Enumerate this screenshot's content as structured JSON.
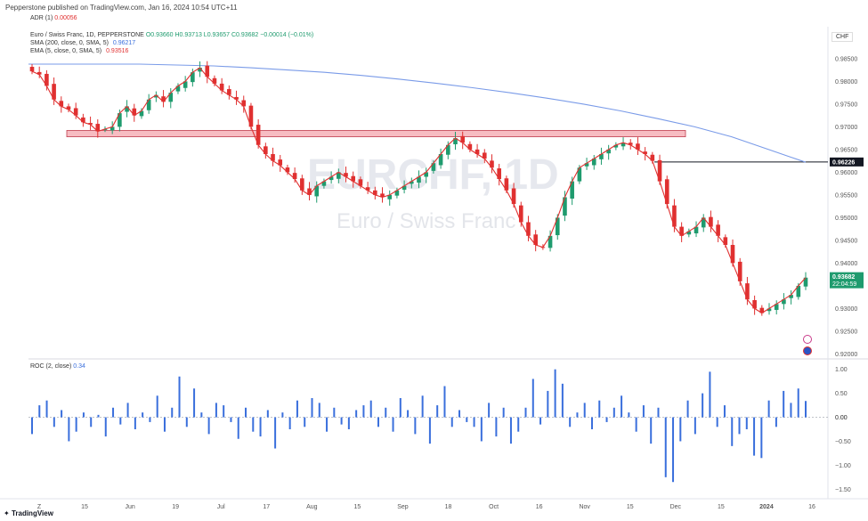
{
  "header": {
    "publisher": "Pepperstone published on TradingView.com, Jan 16, 2024 10:54 UTC+11"
  },
  "adr": {
    "label": "ADR (1)",
    "value": "0.00056"
  },
  "legend": {
    "symbol": "Euro / Swiss Franc, 1D, PEPPERSTONE",
    "ohlc": "O0.93660 H0.93713 L0.93657 C0.93682 −0.00014 (−0.01%)",
    "sma_label": "SMA (200, close, 0, SMA, 5)",
    "sma_value": "0.96217",
    "ema_label": "EMA (5, close, 0, SMA, 5)",
    "ema_value": "0.93516"
  },
  "currency": "CHF",
  "watermark": {
    "ticker": "EURCHF, 1D",
    "name": "Euro / Swiss Franc"
  },
  "roc": {
    "label": "ROC (2, close)",
    "value": "0.34"
  },
  "footer": {
    "brand": "TradingView"
  },
  "colors": {
    "up": "#1f9b6e",
    "down": "#e03030",
    "sma": "#7a9be8",
    "ema": "#e03030",
    "roc": "#3a6fdc",
    "zone": "#f4a6ad"
  },
  "chart_data": [
    {
      "type": "candlestick",
      "title": "Euro / Swiss Franc, 1D, PEPPERSTONE",
      "y_ticks": [
        "0.98500",
        "0.98000",
        "0.97500",
        "0.97000",
        "0.96500",
        "0.96000",
        "0.95500",
        "0.95000",
        "0.94500",
        "0.94000",
        "0.93500",
        "0.93000",
        "0.92500",
        "0.92000"
      ],
      "ylim": [
        0.9195,
        0.9885
      ],
      "x_ticks": [
        "Z",
        "15",
        "Jun",
        "19",
        "Jul",
        "17",
        "Aug",
        "15",
        "Sep",
        "18",
        "Oct",
        "16",
        "Nov",
        "15",
        "Dec",
        "15",
        "2024",
        "16"
      ],
      "horizontal_line": {
        "value": 0.96226,
        "label": "0.96226"
      },
      "last_price": {
        "value": 0.93682,
        "label": "0.93682",
        "countdown": "22:04:59"
      },
      "resistance_zone": [
        0.9678,
        0.9692
      ],
      "close_series_approx": [
        0.9822,
        0.9815,
        0.979,
        0.976,
        0.9745,
        0.9738,
        0.9725,
        0.971,
        0.9705,
        0.969,
        0.9695,
        0.97,
        0.973,
        0.9745,
        0.9725,
        0.9735,
        0.976,
        0.977,
        0.9755,
        0.9775,
        0.979,
        0.98,
        0.982,
        0.983,
        0.981,
        0.9795,
        0.978,
        0.977,
        0.976,
        0.9745,
        0.97,
        0.966,
        0.964,
        0.9625,
        0.9615,
        0.96,
        0.9585,
        0.956,
        0.955,
        0.957,
        0.958,
        0.959,
        0.96,
        0.959,
        0.958,
        0.957,
        0.956,
        0.955,
        0.9545,
        0.955,
        0.956,
        0.957,
        0.958,
        0.959,
        0.96,
        0.962,
        0.964,
        0.966,
        0.9675,
        0.9665,
        0.965,
        0.964,
        0.963,
        0.961,
        0.9585,
        0.956,
        0.953,
        0.949,
        0.946,
        0.944,
        0.9435,
        0.946,
        0.95,
        0.9545,
        0.958,
        0.961,
        0.962,
        0.963,
        0.964,
        0.965,
        0.966,
        0.9665,
        0.966,
        0.965,
        0.964,
        0.9625,
        0.958,
        0.953,
        0.948,
        0.946,
        0.947,
        0.948,
        0.95,
        0.948,
        0.946,
        0.944,
        0.94,
        0.936,
        0.932,
        0.93,
        0.929,
        0.93,
        0.931,
        0.932,
        0.933,
        0.935,
        0.9368
      ],
      "sma200_approx": [
        0.9838,
        0.9838,
        0.9838,
        0.9838,
        0.9836,
        0.9834,
        0.983,
        0.9825,
        0.982,
        0.9813,
        0.9805,
        0.9796,
        0.9786,
        0.9775,
        0.9763,
        0.975,
        0.9735,
        0.9718,
        0.97,
        0.9678,
        0.965,
        0.9622
      ]
    },
    {
      "type": "bar",
      "title": "ROC (2, close)",
      "y_ticks": [
        "1.00",
        "0.50",
        "0.00",
        "−0.50",
        "−1.00",
        "−1.50"
      ],
      "ylim": [
        -1.55,
        1.05
      ],
      "zero_label": "0.00",
      "values_approx": [
        -0.35,
        0.25,
        0.35,
        -0.2,
        0.15,
        -0.5,
        -0.3,
        0.1,
        -0.2,
        0.05,
        -0.4,
        0.2,
        -0.15,
        0.3,
        -0.25,
        0.1,
        -0.1,
        0.45,
        -0.3,
        0.2,
        0.85,
        -0.2,
        0.6,
        0.1,
        -0.35,
        0.3,
        0.25,
        -0.1,
        -0.45,
        0.2,
        -0.3,
        -0.4,
        0.15,
        -0.65,
        0.1,
        -0.25,
        0.35,
        -0.2,
        0.4,
        0.3,
        -0.3,
        0.2,
        -0.15,
        -0.25,
        0.15,
        0.25,
        0.35,
        -0.2,
        0.2,
        -0.3,
        0.4,
        0.15,
        -0.35,
        0.45,
        -0.55,
        0.25,
        0.65,
        -0.2,
        0.15,
        -0.1,
        -0.2,
        -0.5,
        0.3,
        -0.4,
        0.2,
        -0.55,
        -0.3,
        0.2,
        0.8,
        -0.15,
        0.55,
        1.0,
        0.7,
        -0.2,
        0.1,
        0.3,
        -0.25,
        0.35,
        -0.1,
        0.2,
        0.45,
        0.1,
        -0.3,
        0.25,
        -0.55,
        0.2,
        -1.25,
        -1.35,
        -0.5,
        0.35,
        -0.35,
        0.5,
        0.95,
        -0.2,
        0.25,
        -0.6,
        -0.35,
        -0.25,
        -0.8,
        -0.85,
        0.35,
        -0.2,
        0.55,
        0.3,
        0.6,
        0.34
      ]
    }
  ]
}
